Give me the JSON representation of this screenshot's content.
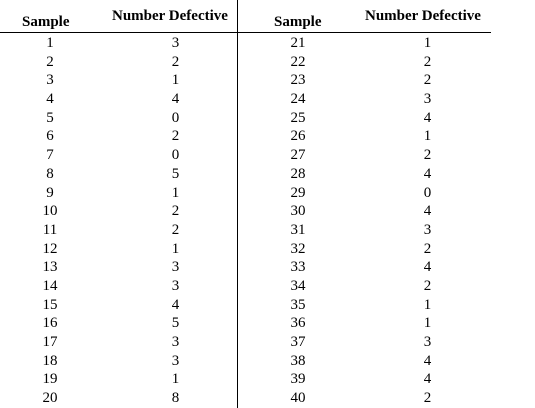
{
  "headers": {
    "left_sample": "Sample",
    "left_defective": "Number Defective",
    "right_sample": "Sample",
    "right_defective": "Number Defective"
  },
  "left_rows": [
    {
      "sample": "1",
      "defective": "3"
    },
    {
      "sample": "2",
      "defective": "2"
    },
    {
      "sample": "3",
      "defective": "1"
    },
    {
      "sample": "4",
      "defective": "4"
    },
    {
      "sample": "5",
      "defective": "0"
    },
    {
      "sample": "6",
      "defective": "2"
    },
    {
      "sample": "7",
      "defective": "0"
    },
    {
      "sample": "8",
      "defective": "5"
    },
    {
      "sample": "9",
      "defective": "1"
    },
    {
      "sample": "10",
      "defective": "2"
    },
    {
      "sample": "11",
      "defective": "2"
    },
    {
      "sample": "12",
      "defective": "1"
    },
    {
      "sample": "13",
      "defective": "3"
    },
    {
      "sample": "14",
      "defective": "3"
    },
    {
      "sample": "15",
      "defective": "4"
    },
    {
      "sample": "16",
      "defective": "5"
    },
    {
      "sample": "17",
      "defective": "3"
    },
    {
      "sample": "18",
      "defective": "3"
    },
    {
      "sample": "19",
      "defective": "1"
    },
    {
      "sample": "20",
      "defective": "8"
    }
  ],
  "right_rows": [
    {
      "sample": "21",
      "defective": "1"
    },
    {
      "sample": "22",
      "defective": "2"
    },
    {
      "sample": "23",
      "defective": "2"
    },
    {
      "sample": "24",
      "defective": "3"
    },
    {
      "sample": "25",
      "defective": "4"
    },
    {
      "sample": "26",
      "defective": "1"
    },
    {
      "sample": "27",
      "defective": "2"
    },
    {
      "sample": "28",
      "defective": "4"
    },
    {
      "sample": "29",
      "defective": "0"
    },
    {
      "sample": "30",
      "defective": "4"
    },
    {
      "sample": "31",
      "defective": "3"
    },
    {
      "sample": "32",
      "defective": "2"
    },
    {
      "sample": "33",
      "defective": "4"
    },
    {
      "sample": "34",
      "defective": "2"
    },
    {
      "sample": "35",
      "defective": "1"
    },
    {
      "sample": "36",
      "defective": "1"
    },
    {
      "sample": "37",
      "defective": "3"
    },
    {
      "sample": "38",
      "defective": "4"
    },
    {
      "sample": "39",
      "defective": "4"
    },
    {
      "sample": "40",
      "defective": "2"
    }
  ]
}
